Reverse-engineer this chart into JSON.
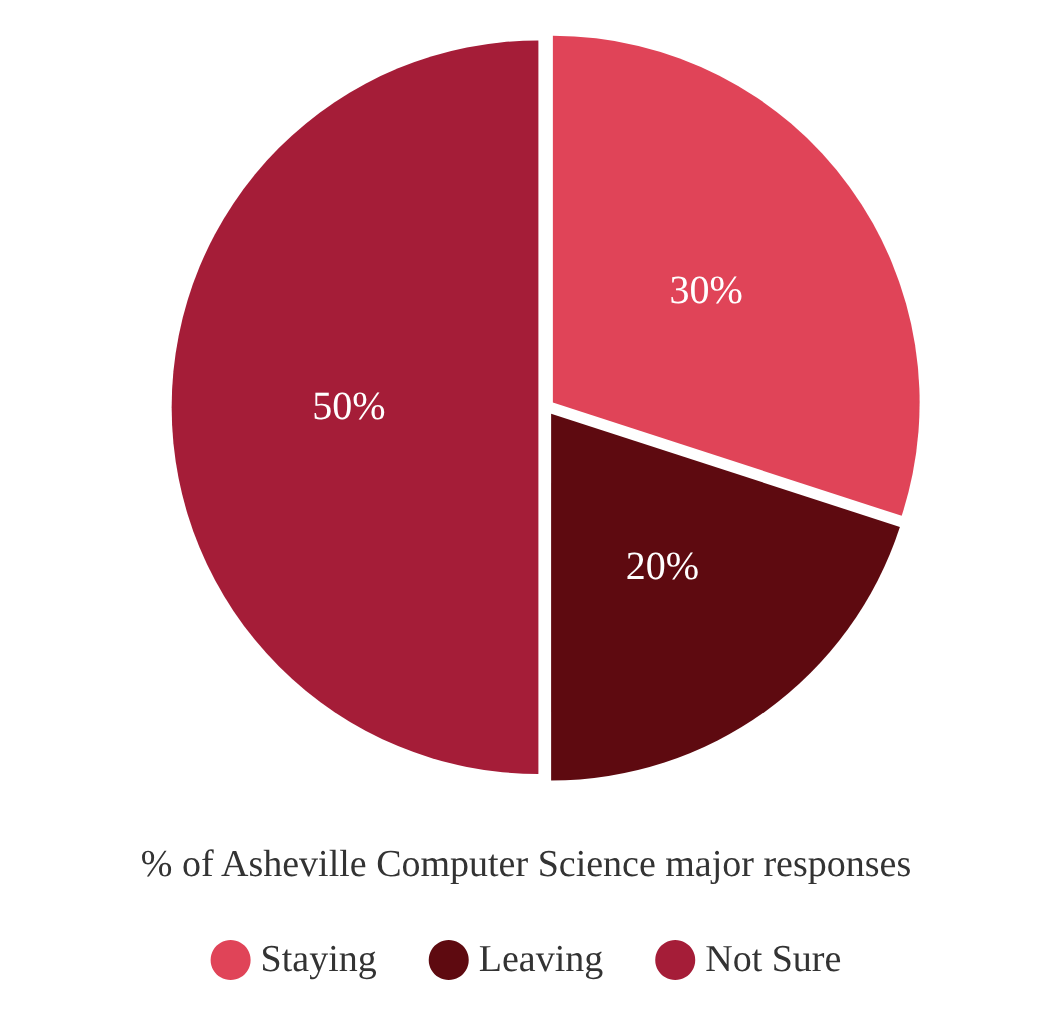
{
  "chart_data": {
    "type": "pie",
    "title": "% of Asheville Computer Science major responses",
    "categories": [
      "Staying",
      "Leaving",
      "Not Sure"
    ],
    "values": [
      30,
      20,
      50
    ],
    "colors": [
      "#e04458",
      "#5e0a10",
      "#a51d38"
    ],
    "value_labels": [
      "30%",
      "20%",
      "50%"
    ],
    "legend": "bottom"
  }
}
